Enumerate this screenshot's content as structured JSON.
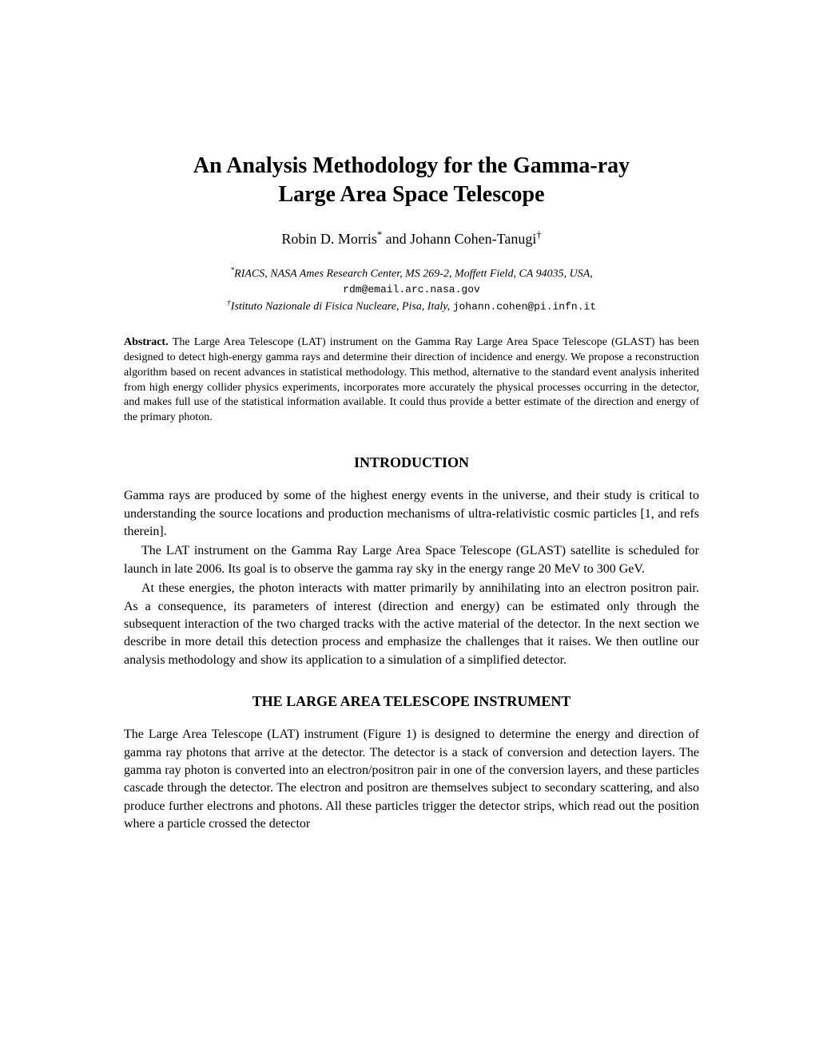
{
  "title_line1": "An Analysis Methodology for the Gamma-ray",
  "title_line2": "Large Area Space Telescope",
  "author1": "Robin D. Morris",
  "author1_sup": "*",
  "author_sep": " and ",
  "author2": "Johann Cohen-Tanugi",
  "author2_sup": "†",
  "affil1_sup": "*",
  "affil1_text": "RIACS, NASA Ames Research Center, MS 269-2, Moffett Field, CA 94035, USA,",
  "affil1_email": "rdm@email.arc.nasa.gov",
  "affil2_sup": "†",
  "affil2_text": "Istituto Nazionale di Fisica Nucleare, Pisa, Italy, ",
  "affil2_email": "johann.cohen@pi.infn.it",
  "abstract_label": "Abstract. ",
  "abstract_text": "The Large Area Telescope (LAT) instrument on the Gamma Ray Large Area Space Telescope (GLAST) has been designed to detect high-energy gamma rays and determine their direction of incidence and energy. We propose a reconstruction algorithm based on recent advances in statistical methodology. This method, alternative to the standard event analysis inherited from high energy collider physics experiments, incorporates more accurately the physical processes occurring in the detector, and makes full use of the statistical information available. It could thus provide a better estimate of the direction and energy of the primary photon.",
  "section1_heading": "INTRODUCTION",
  "intro_p1": "Gamma rays are produced by some of the highest energy events in the universe, and their study is critical to understanding the source locations and production mechanisms of ultra-relativistic cosmic particles [1, and refs therein].",
  "intro_p2": "The LAT instrument on the Gamma Ray Large Area Space Telescope (GLAST) satellite is scheduled for launch in late 2006. Its goal is to observe the gamma ray sky in the energy range 20 MeV to 300 GeV.",
  "intro_p3": "At these energies, the photon interacts with matter primarily by annihilating into an electron positron pair. As a consequence, its parameters of interest (direction and energy) can be estimated only through the subsequent interaction of the two charged tracks with the active material of the detector. In the next section we describe in more detail this detection process and emphasize the challenges that it raises. We then outline our analysis methodology and show its application to a simulation of a simplified detector.",
  "section2_heading": "THE LARGE AREA TELESCOPE INSTRUMENT",
  "instr_p1": "The Large Area Telescope (LAT) instrument (Figure 1) is designed to determine the energy and direction of gamma ray photons that arrive at the detector. The detector is a stack of conversion and detection layers. The gamma ray photon is converted into an electron/positron pair in one of the conversion layers, and these particles cascade through the detector. The electron and positron are themselves subject to secondary scattering, and also produce further electrons and photons. All these particles trigger the detector strips, which read out the position where a particle crossed the detector"
}
